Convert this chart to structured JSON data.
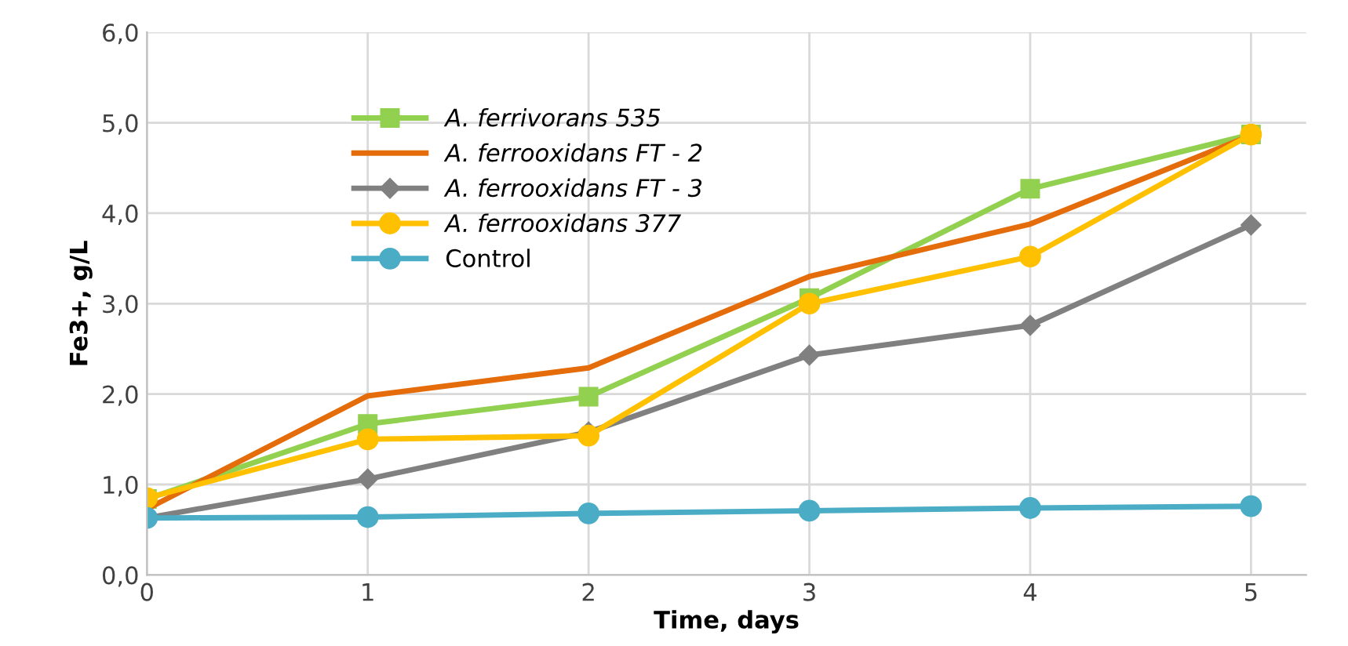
{
  "chart_data": {
    "type": "line",
    "xlabel": "Time, days",
    "ylabel": "Fe3+, g/L",
    "x": [
      0,
      1,
      2,
      3,
      4,
      5
    ],
    "series": [
      {
        "name": "A. ferrivorans 535",
        "color": "#92d050",
        "marker": "square",
        "values": [
          0.84,
          1.67,
          1.97,
          3.06,
          4.27,
          4.87
        ]
      },
      {
        "name": "A. ferrooxidans FT - 2",
        "color": "#e46c0a",
        "marker": "none",
        "values": [
          0.73,
          1.98,
          2.29,
          3.3,
          3.88,
          4.86
        ]
      },
      {
        "name": "A. ferrooxidans FT - 3",
        "color": "#808080",
        "marker": "diamond",
        "values": [
          0.63,
          1.06,
          1.58,
          2.43,
          2.76,
          3.87
        ]
      },
      {
        "name": "A. ferrooxidans 377",
        "color": "#ffc000",
        "marker": "circle",
        "values": [
          0.85,
          1.5,
          1.54,
          3.0,
          3.52,
          4.87
        ]
      },
      {
        "name": "Control",
        "color": "#4bacc6",
        "marker": "circle",
        "values": [
          0.63,
          0.64,
          0.68,
          0.71,
          0.74,
          0.76
        ]
      }
    ],
    "xlim": [
      0,
      5.25
    ],
    "xticks": [
      0,
      1,
      2,
      3,
      4,
      5
    ],
    "ylim": [
      0,
      6
    ],
    "yticks": [
      {
        "value": 0,
        "label": "0,0"
      },
      {
        "value": 1,
        "label": "1,0"
      },
      {
        "value": 2,
        "label": "2,0"
      },
      {
        "value": 3,
        "label": "3,0"
      },
      {
        "value": 4,
        "label": "4,0"
      },
      {
        "value": 5,
        "label": "5,0"
      },
      {
        "value": 6,
        "label": "6,0"
      }
    ],
    "grid": true,
    "legend": "top left"
  }
}
